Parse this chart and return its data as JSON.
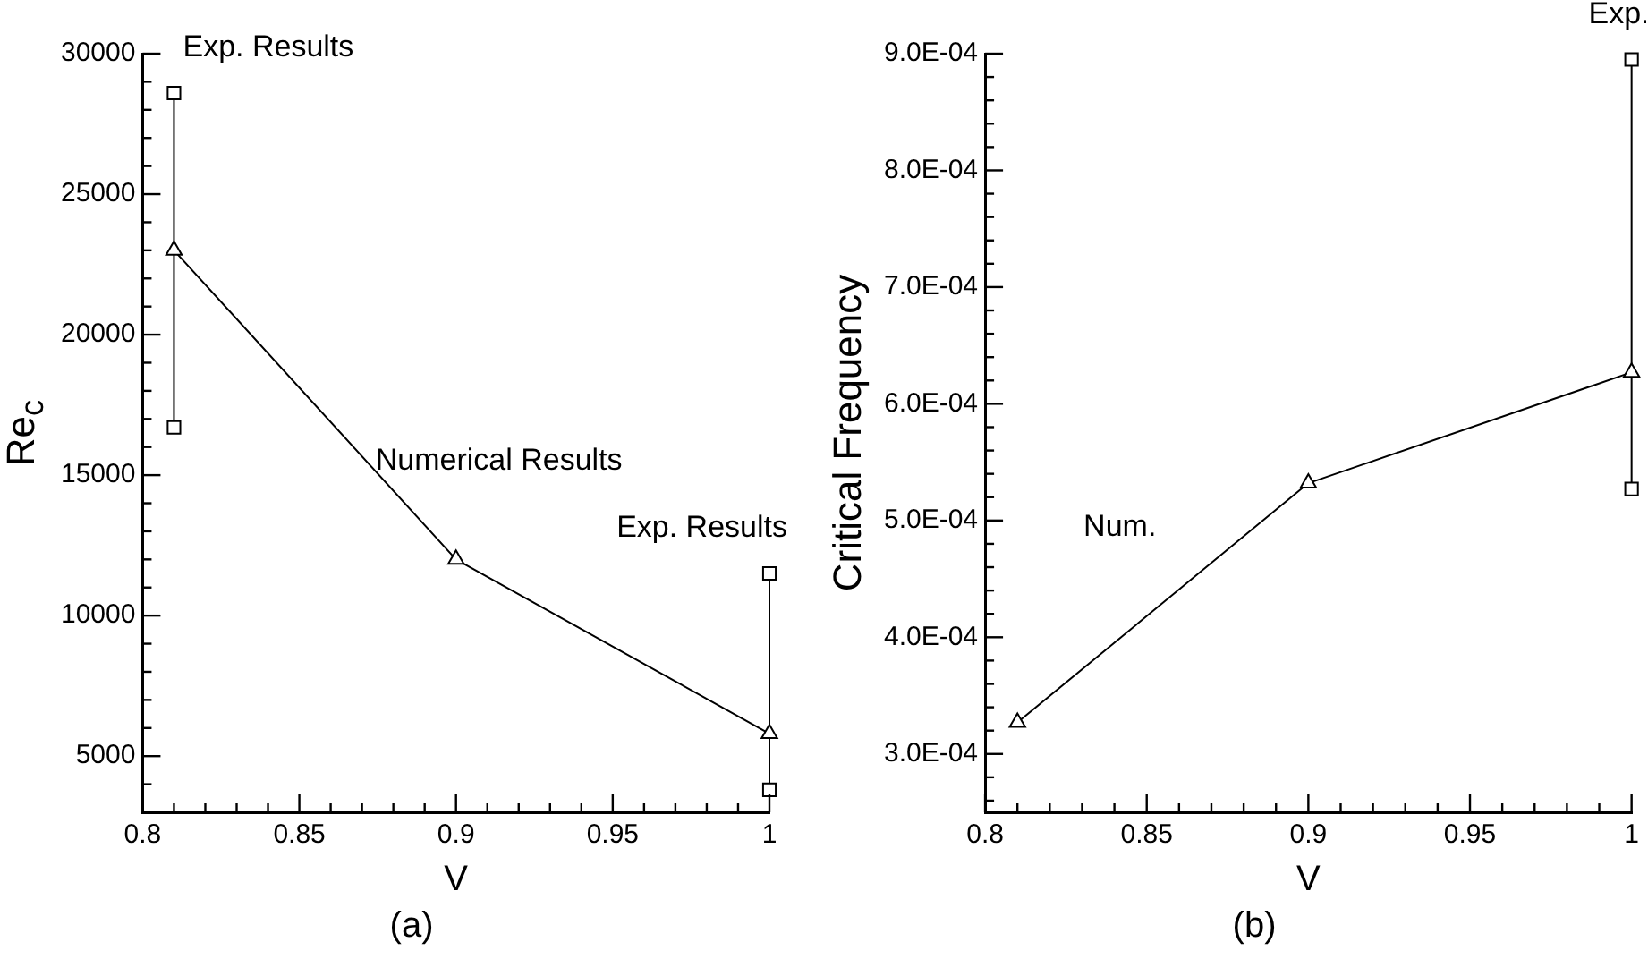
{
  "chart_data": [
    {
      "type": "line",
      "title": "(a)",
      "xlabel": "V",
      "ylabel": "Re$_{c}$",
      "xlim": [
        0.8,
        1
      ],
      "ylim": [
        3000,
        30000
      ],
      "xticks": [
        0.8,
        {
          "value": 0.81,
          "label": null
        },
        {
          "value": 0.82,
          "label": null
        },
        {
          "value": 0.83,
          "label": null
        },
        {
          "value": 0.84,
          "label": null
        },
        0.85,
        {
          "value": 0.86,
          "label": null
        },
        {
          "value": 0.87,
          "label": null
        },
        {
          "value": 0.88,
          "label": null
        },
        {
          "value": 0.89,
          "label": null
        },
        0.9,
        {
          "value": 0.91,
          "label": null
        },
        {
          "value": 0.92,
          "label": null
        },
        {
          "value": 0.93,
          "label": null
        },
        {
          "value": 0.94,
          "label": null
        },
        0.95,
        {
          "value": 0.96,
          "label": null
        },
        {
          "value": 0.97,
          "label": null
        },
        {
          "value": 0.98,
          "label": null
        },
        {
          "value": 0.99,
          "label": null
        },
        1
      ],
      "yticks": [
        {
          "value": 4000,
          "label": null
        },
        5000,
        {
          "value": 6000,
          "label": null
        },
        {
          "value": 7000,
          "label": null
        },
        {
          "value": 8000,
          "label": null
        },
        {
          "value": 9000,
          "label": null
        },
        10000,
        {
          "value": 11000,
          "label": null
        },
        {
          "value": 12000,
          "label": null
        },
        {
          "value": 13000,
          "label": null
        },
        {
          "value": 14000,
          "label": null
        },
        15000,
        {
          "value": 16000,
          "label": null
        },
        {
          "value": 17000,
          "label": null
        },
        {
          "value": 18000,
          "label": null
        },
        {
          "value": 19000,
          "label": null
        },
        20000,
        {
          "value": 21000,
          "label": null
        },
        {
          "value": 22000,
          "label": null
        },
        {
          "value": 23000,
          "label": null
        },
        {
          "value": 24000,
          "label": null
        },
        25000,
        {
          "value": 26000,
          "label": null
        },
        {
          "value": 27000,
          "label": null
        },
        {
          "value": 28000,
          "label": null
        },
        {
          "value": 29000,
          "label": null
        },
        30000
      ],
      "grid": false,
      "legend": false,
      "series": [
        {
          "name": "Numerical Results",
          "color": "#000000",
          "marker": "triangle",
          "x": [
            0.81,
            0.9,
            1
          ],
          "values": [
            23000,
            12000,
            5800
          ]
        },
        {
          "name": "Exp. Results",
          "color": "#000000",
          "marker": "square",
          "x": [
            0.81,
            0.81
          ],
          "values": [
            28600,
            16700
          ]
        },
        {
          "name": "Exp. Results",
          "color": "#000000",
          "marker": "square",
          "x": [
            1,
            1
          ],
          "values": [
            11500,
            3800
          ]
        }
      ]
    },
    {
      "type": "line",
      "title": "(b)",
      "xlabel": "V",
      "ylabel": "Critical Frequency",
      "xlim": [
        0.8,
        1
      ],
      "ylim": [
        0.00025,
        0.0009
      ],
      "xticks": [
        0.8,
        {
          "value": 0.81,
          "label": null
        },
        {
          "value": 0.82,
          "label": null
        },
        {
          "value": 0.83,
          "label": null
        },
        {
          "value": 0.84,
          "label": null
        },
        0.85,
        {
          "value": 0.86,
          "label": null
        },
        {
          "value": 0.87,
          "label": null
        },
        {
          "value": 0.88,
          "label": null
        },
        {
          "value": 0.89,
          "label": null
        },
        0.9,
        {
          "value": 0.91,
          "label": null
        },
        {
          "value": 0.92,
          "label": null
        },
        {
          "value": 0.93,
          "label": null
        },
        {
          "value": 0.94,
          "label": null
        },
        0.95,
        {
          "value": 0.96,
          "label": null
        },
        {
          "value": 0.97,
          "label": null
        },
        {
          "value": 0.98,
          "label": null
        },
        {
          "value": 0.99,
          "label": null
        },
        1
      ],
      "yticks": [
        {
          "value": 0.00026,
          "label": null
        },
        {
          "value": 0.00028,
          "label": null
        },
        {
          "value": 0.0003,
          "label": "3.0E-04"
        },
        {
          "value": 0.00032,
          "label": null
        },
        {
          "value": 0.00034,
          "label": null
        },
        {
          "value": 0.00036,
          "label": null
        },
        {
          "value": 0.00038,
          "label": null
        },
        {
          "value": 0.0004,
          "label": "4.0E-04"
        },
        {
          "value": 0.00042,
          "label": null
        },
        {
          "value": 0.00044,
          "label": null
        },
        {
          "value": 0.00046,
          "label": null
        },
        {
          "value": 0.00048,
          "label": null
        },
        {
          "value": 0.0005,
          "label": "5.0E-04"
        },
        {
          "value": 0.00052,
          "label": null
        },
        {
          "value": 0.00054,
          "label": null
        },
        {
          "value": 0.00056,
          "label": null
        },
        {
          "value": 0.00058,
          "label": null
        },
        {
          "value": 0.0006,
          "label": "6.0E-04"
        },
        {
          "value": 0.00062,
          "label": null
        },
        {
          "value": 0.00064,
          "label": null
        },
        {
          "value": 0.00066,
          "label": null
        },
        {
          "value": 0.00068,
          "label": null
        },
        {
          "value": 0.0007,
          "label": "7.0E-04"
        },
        {
          "value": 0.00072,
          "label": null
        },
        {
          "value": 0.00074,
          "label": null
        },
        {
          "value": 0.00076,
          "label": null
        },
        {
          "value": 0.00078,
          "label": null
        },
        {
          "value": 0.0008,
          "label": "8.0E-04"
        },
        {
          "value": 0.00082,
          "label": null
        },
        {
          "value": 0.00084,
          "label": null
        },
        {
          "value": 0.00086,
          "label": null
        },
        {
          "value": 0.00088,
          "label": null
        },
        {
          "value": 0.0009,
          "label": "9.0E-04"
        }
      ],
      "grid": false,
      "legend": false,
      "series": [
        {
          "name": "Num.",
          "color": "#000000",
          "marker": "triangle",
          "x": [
            0.81,
            0.9,
            1
          ],
          "values": [
            0.000327,
            0.000532,
            0.000627
          ]
        },
        {
          "name": "Exp.",
          "color": "#000000",
          "marker": "square",
          "x": [
            1,
            1
          ],
          "values": [
            0.000895,
            0.000527
          ]
        }
      ]
    }
  ]
}
